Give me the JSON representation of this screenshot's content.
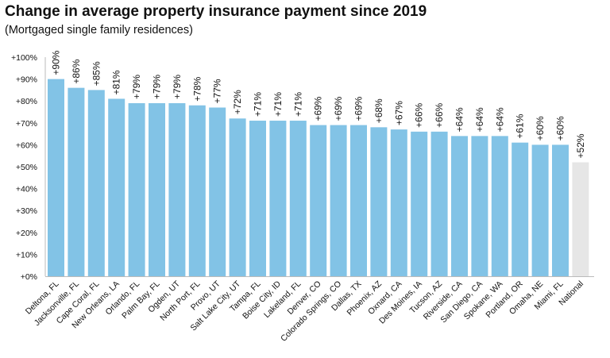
{
  "chart_data": {
    "type": "bar",
    "title": "Change in average property insurance payment since 2019",
    "subtitle": "(Mortgaged single family residences)",
    "xlabel": "",
    "ylabel": "",
    "ylim": [
      0,
      100
    ],
    "yticks": [
      "+0%",
      "+10%",
      "+20%",
      "+30%",
      "+40%",
      "+50%",
      "+60%",
      "+70%",
      "+80%",
      "+90%",
      "+100%"
    ],
    "grid": false,
    "categories": [
      "Deltona, FL",
      "Jacksonville, FL",
      "Cape Coral, FL",
      "New Orleans, LA",
      "Orlando, FL",
      "Palm Bay, FL",
      "Ogden, UT",
      "North Port, FL",
      "Provo, UT",
      "Salt Lake City, UT",
      "Tampa, FL",
      "Boise City, ID",
      "Lakeland, FL",
      "Denver, CO",
      "Colorado Springs, CO",
      "Dallas, TX",
      "Phoenix, AZ",
      "Oxnard, CA",
      "Des Moines, IA",
      "Tucson, AZ",
      "Riverside, CA",
      "San Diego, CA",
      "Spokane, WA",
      "Portland, OR",
      "Omaha, NE",
      "Miami, FL",
      "National"
    ],
    "values": [
      90,
      86,
      85,
      81,
      79,
      79,
      79,
      78,
      77,
      72,
      71,
      71,
      71,
      69,
      69,
      69,
      68,
      67,
      66,
      66,
      64,
      64,
      64,
      61,
      60,
      60,
      52
    ],
    "data_labels": [
      "+90%",
      "+86%",
      "+85%",
      "+81%",
      "+79%",
      "+79%",
      "+79%",
      "+78%",
      "+77%",
      "+72%",
      "+71%",
      "+71%",
      "+71%",
      "+69%",
      "+69%",
      "+69%",
      "+68%",
      "+67%",
      "+66%",
      "+66%",
      "+64%",
      "+64%",
      "+64%",
      "+61%",
      "+60%",
      "+60%",
      "+52%"
    ],
    "colors": {
      "metro": "#82c3e6",
      "national": "#e6e6e6"
    }
  }
}
